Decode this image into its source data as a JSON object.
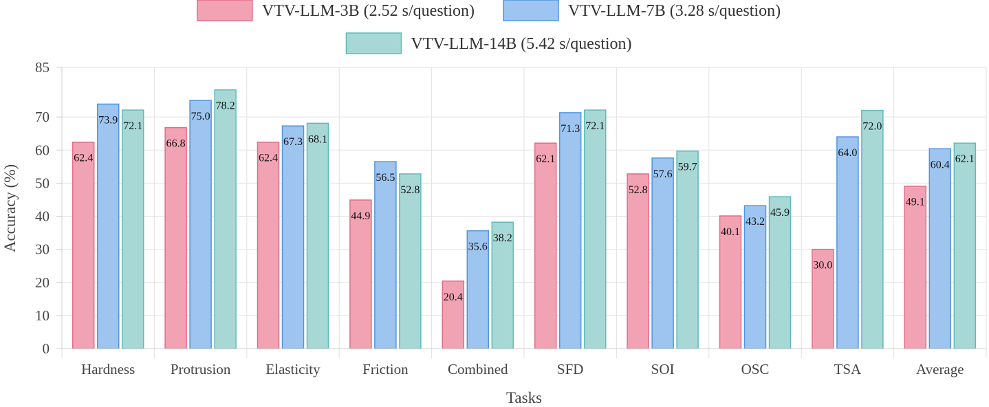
{
  "chart_data": {
    "type": "bar",
    "title": "",
    "xlabel": "Tasks",
    "ylabel": "Accuracy (%)",
    "ylim": [
      0,
      85
    ],
    "yticks": [
      0,
      10,
      20,
      30,
      40,
      50,
      60,
      70,
      85
    ],
    "grid": true,
    "legend_position": "top-center",
    "categories": [
      "Hardness",
      "Protrusion",
      "Elasticity",
      "Friction",
      "Combined",
      "SFD",
      "SOI",
      "OSC",
      "TSA",
      "Average"
    ],
    "series": [
      {
        "name": "VTV-LLM-3B (2.52 s/question)",
        "fill": "#f2a3b3",
        "stroke": "#e56b85",
        "values": [
          62.4,
          66.8,
          62.4,
          44.9,
          20.4,
          62.1,
          52.8,
          40.1,
          30.0,
          49.1
        ],
        "labels": [
          "62.4",
          "66.8",
          "62.4",
          "44.9",
          "20.4",
          "62.1",
          "52.8",
          "40.1",
          "30.0",
          "49.1"
        ]
      },
      {
        "name": "VTV-LLM-7B (3.28 s/question)",
        "fill": "#9ec5ef",
        "stroke": "#4f95e0",
        "values": [
          73.9,
          75.0,
          67.3,
          56.5,
          35.6,
          71.3,
          57.6,
          43.2,
          64.0,
          60.4
        ],
        "labels": [
          "73.9",
          "75.0",
          "67.3",
          "56.5",
          "35.6",
          "71.3",
          "57.6",
          "43.2",
          "64.0",
          "60.4"
        ]
      },
      {
        "name": "VTV-LLM-14B (5.42 s/question)",
        "fill": "#a8d8d6",
        "stroke": "#5dbdb8",
        "values": [
          72.1,
          78.2,
          68.1,
          52.8,
          38.2,
          72.1,
          59.7,
          45.9,
          72.0,
          62.1
        ],
        "labels": [
          "72.1",
          "78.2",
          "68.1",
          "52.8",
          "38.2",
          "72.1",
          "59.7",
          "45.9",
          "72.0",
          "62.1"
        ]
      }
    ]
  }
}
